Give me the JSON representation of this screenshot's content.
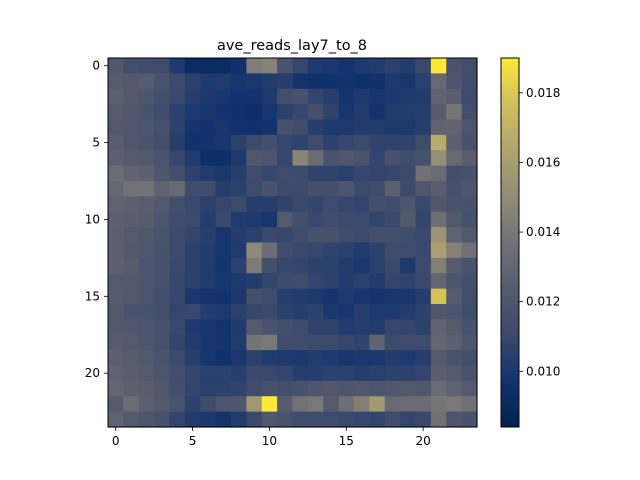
{
  "chart_data": {
    "type": "heatmap",
    "title": "ave_reads_lay7_to_8",
    "xlabel": "",
    "ylabel": "",
    "colormap": "cividis",
    "rows": 24,
    "cols": 24,
    "x_ticks": [
      0,
      5,
      10,
      15,
      20
    ],
    "y_ticks": [
      0,
      5,
      10,
      15,
      20
    ],
    "colorbar": {
      "vmin": 0.0084,
      "vmax": 0.019,
      "ticks": [
        0.01,
        0.012,
        0.014,
        0.016,
        0.018
      ],
      "tick_labels": [
        "0.010",
        "0.012",
        "0.014",
        "0.016",
        "0.018"
      ]
    },
    "values": [
      [
        0.0121,
        0.0114,
        0.0113,
        0.0112,
        0.0101,
        0.0092,
        0.0091,
        0.0092,
        0.0096,
        0.0143,
        0.0146,
        0.0118,
        0.0109,
        0.0101,
        0.01,
        0.0098,
        0.0101,
        0.0102,
        0.0105,
        0.0103,
        0.011,
        0.019,
        0.0118,
        0.0114
      ],
      [
        0.0124,
        0.0122,
        0.0124,
        0.0118,
        0.0111,
        0.0106,
        0.0101,
        0.0102,
        0.0099,
        0.01,
        0.0102,
        0.0104,
        0.0098,
        0.0095,
        0.0096,
        0.0097,
        0.0095,
        0.0096,
        0.0101,
        0.0099,
        0.0105,
        0.0132,
        0.0119,
        0.0113
      ],
      [
        0.0126,
        0.0122,
        0.012,
        0.0115,
        0.011,
        0.0104,
        0.01,
        0.0099,
        0.0097,
        0.0097,
        0.0101,
        0.0114,
        0.0116,
        0.0108,
        0.0104,
        0.0098,
        0.0101,
        0.0099,
        0.01,
        0.0101,
        0.0102,
        0.0128,
        0.0125,
        0.0111
      ],
      [
        0.0124,
        0.0121,
        0.0117,
        0.0113,
        0.0106,
        0.0101,
        0.0099,
        0.0097,
        0.0096,
        0.0094,
        0.0099,
        0.0106,
        0.0109,
        0.0115,
        0.0107,
        0.0099,
        0.0103,
        0.0097,
        0.0102,
        0.0103,
        0.0104,
        0.0124,
        0.0139,
        0.0114
      ],
      [
        0.0122,
        0.0121,
        0.0119,
        0.0116,
        0.0106,
        0.0098,
        0.0097,
        0.0099,
        0.0097,
        0.0096,
        0.0097,
        0.0116,
        0.0113,
        0.0104,
        0.0101,
        0.0101,
        0.0102,
        0.0102,
        0.0101,
        0.0101,
        0.0104,
        0.0128,
        0.0129,
        0.0119
      ],
      [
        0.0125,
        0.0121,
        0.0118,
        0.0115,
        0.0104,
        0.0096,
        0.0097,
        0.0099,
        0.0105,
        0.0111,
        0.0115,
        0.0109,
        0.0107,
        0.0112,
        0.0106,
        0.0109,
        0.0111,
        0.0107,
        0.0107,
        0.0107,
        0.0112,
        0.0168,
        0.0126,
        0.0117
      ],
      [
        0.0126,
        0.0123,
        0.0122,
        0.0118,
        0.0109,
        0.0102,
        0.0094,
        0.0094,
        0.0101,
        0.0121,
        0.0119,
        0.0109,
        0.0147,
        0.0133,
        0.0118,
        0.0121,
        0.0118,
        0.0108,
        0.0117,
        0.0113,
        0.0116,
        0.0152,
        0.0132,
        0.0125
      ],
      [
        0.0133,
        0.0129,
        0.0127,
        0.012,
        0.0114,
        0.0106,
        0.0102,
        0.01,
        0.0104,
        0.0113,
        0.0109,
        0.0112,
        0.0111,
        0.0107,
        0.0107,
        0.0105,
        0.0109,
        0.0108,
        0.0109,
        0.0111,
        0.0136,
        0.0133,
        0.0115,
        0.0116
      ],
      [
        0.0131,
        0.0137,
        0.0137,
        0.0128,
        0.0132,
        0.0113,
        0.0113,
        0.0104,
        0.0105,
        0.0112,
        0.0117,
        0.0111,
        0.0111,
        0.0115,
        0.0115,
        0.0119,
        0.0111,
        0.0113,
        0.0126,
        0.0112,
        0.0121,
        0.0125,
        0.0116,
        0.012
      ],
      [
        0.0128,
        0.0127,
        0.0125,
        0.0122,
        0.0114,
        0.011,
        0.0106,
        0.0109,
        0.0111,
        0.0104,
        0.0104,
        0.0107,
        0.011,
        0.0108,
        0.0112,
        0.0109,
        0.0108,
        0.0115,
        0.0113,
        0.0119,
        0.011,
        0.0121,
        0.0118,
        0.0117
      ],
      [
        0.0127,
        0.0125,
        0.0124,
        0.0119,
        0.0113,
        0.0111,
        0.0103,
        0.011,
        0.0102,
        0.0101,
        0.0099,
        0.0123,
        0.0115,
        0.011,
        0.0113,
        0.0111,
        0.0111,
        0.0108,
        0.011,
        0.0123,
        0.0108,
        0.0135,
        0.0122,
        0.0116
      ],
      [
        0.0126,
        0.0123,
        0.0121,
        0.0118,
        0.0111,
        0.0108,
        0.0104,
        0.0099,
        0.0103,
        0.0105,
        0.011,
        0.0109,
        0.0113,
        0.0116,
        0.0117,
        0.0113,
        0.0111,
        0.0115,
        0.0115,
        0.0113,
        0.011,
        0.0155,
        0.0128,
        0.0122
      ],
      [
        0.0126,
        0.0122,
        0.0121,
        0.0117,
        0.0111,
        0.0106,
        0.0103,
        0.0099,
        0.0102,
        0.0149,
        0.0134,
        0.0113,
        0.011,
        0.0109,
        0.0107,
        0.0105,
        0.0102,
        0.0106,
        0.0112,
        0.0112,
        0.011,
        0.0161,
        0.0145,
        0.0136
      ],
      [
        0.0127,
        0.0124,
        0.0119,
        0.0117,
        0.011,
        0.0106,
        0.0102,
        0.0098,
        0.0105,
        0.0142,
        0.0115,
        0.0109,
        0.0108,
        0.0106,
        0.0106,
        0.0102,
        0.01,
        0.0105,
        0.011,
        0.0101,
        0.0111,
        0.0144,
        0.0124,
        0.0118
      ],
      [
        0.0123,
        0.0122,
        0.0119,
        0.0117,
        0.0109,
        0.0106,
        0.0102,
        0.0099,
        0.0101,
        0.0102,
        0.0108,
        0.0111,
        0.0113,
        0.0108,
        0.0106,
        0.0103,
        0.0105,
        0.0102,
        0.0108,
        0.0107,
        0.011,
        0.013,
        0.0119,
        0.0115
      ],
      [
        0.0124,
        0.0122,
        0.0119,
        0.0115,
        0.0109,
        0.01,
        0.0098,
        0.0097,
        0.01,
        0.0115,
        0.0113,
        0.0104,
        0.0102,
        0.0101,
        0.0098,
        0.0101,
        0.0099,
        0.0098,
        0.0099,
        0.0099,
        0.0104,
        0.0178,
        0.0124,
        0.0114
      ],
      [
        0.0122,
        0.0118,
        0.0117,
        0.0115,
        0.0108,
        0.011,
        0.0103,
        0.0101,
        0.0105,
        0.0109,
        0.011,
        0.0106,
        0.0104,
        0.0106,
        0.01,
        0.0099,
        0.0104,
        0.0101,
        0.0101,
        0.0103,
        0.0106,
        0.0121,
        0.0119,
        0.0113
      ],
      [
        0.0122,
        0.0121,
        0.0119,
        0.0117,
        0.011,
        0.0101,
        0.0099,
        0.0097,
        0.0101,
        0.0123,
        0.0118,
        0.0114,
        0.0111,
        0.0107,
        0.0107,
        0.0103,
        0.0104,
        0.0103,
        0.0109,
        0.0108,
        0.0106,
        0.0129,
        0.0124,
        0.0117
      ],
      [
        0.0124,
        0.0123,
        0.012,
        0.0116,
        0.0108,
        0.0103,
        0.0099,
        0.0098,
        0.0102,
        0.0138,
        0.014,
        0.0113,
        0.0113,
        0.0111,
        0.0111,
        0.0109,
        0.0107,
        0.0128,
        0.0111,
        0.0112,
        0.0112,
        0.013,
        0.0126,
        0.012
      ],
      [
        0.0126,
        0.0124,
        0.0122,
        0.0118,
        0.0111,
        0.0104,
        0.0099,
        0.0096,
        0.01,
        0.0106,
        0.0102,
        0.0101,
        0.01,
        0.0102,
        0.0101,
        0.0099,
        0.01,
        0.01,
        0.0103,
        0.0101,
        0.0104,
        0.0123,
        0.0118,
        0.0115
      ],
      [
        0.0128,
        0.0125,
        0.0123,
        0.0119,
        0.0115,
        0.0108,
        0.0105,
        0.0105,
        0.0104,
        0.011,
        0.011,
        0.0108,
        0.0104,
        0.0104,
        0.0106,
        0.0105,
        0.0104,
        0.0105,
        0.0106,
        0.0106,
        0.0108,
        0.0125,
        0.0123,
        0.0118
      ],
      [
        0.013,
        0.0126,
        0.0125,
        0.0121,
        0.0114,
        0.0108,
        0.0106,
        0.0106,
        0.0107,
        0.0113,
        0.0116,
        0.0114,
        0.0116,
        0.012,
        0.0121,
        0.012,
        0.0121,
        0.0119,
        0.0121,
        0.0122,
        0.0121,
        0.0133,
        0.0128,
        0.0123
      ],
      [
        0.0124,
        0.0134,
        0.0126,
        0.0122,
        0.0118,
        0.0106,
        0.0113,
        0.012,
        0.012,
        0.0157,
        0.019,
        0.0124,
        0.0137,
        0.014,
        0.0123,
        0.0135,
        0.0144,
        0.0158,
        0.0132,
        0.0133,
        0.0133,
        0.0139,
        0.014,
        0.0136
      ],
      [
        0.0128,
        0.0123,
        0.012,
        0.0117,
        0.0108,
        0.0103,
        0.01,
        0.0098,
        0.0102,
        0.011,
        0.0121,
        0.0118,
        0.0113,
        0.0113,
        0.0112,
        0.011,
        0.0109,
        0.0108,
        0.0113,
        0.0108,
        0.011,
        0.0136,
        0.0119,
        0.0117
      ]
    ]
  }
}
